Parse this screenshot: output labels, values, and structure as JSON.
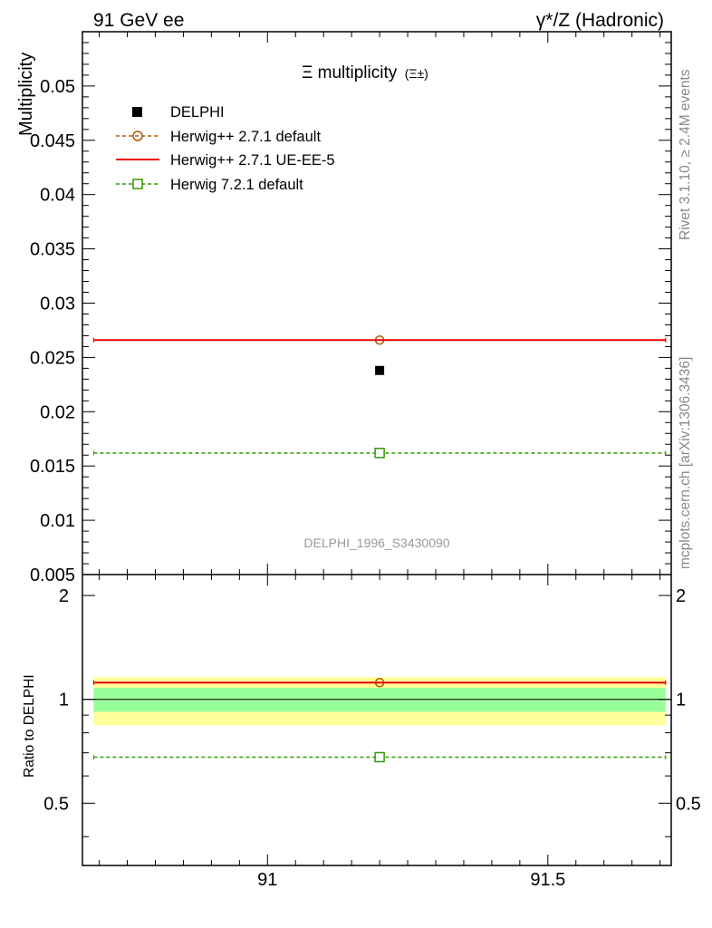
{
  "header": {
    "left": "91 GeV ee",
    "right": "γ*/Z (Hadronic)"
  },
  "side_labels": {
    "rivet": "Rivet 3.1.10, ≥ 2.4M events",
    "mcplots": "mcplots.cern.ch [arXiv:1306.3436]"
  },
  "chart_data": {
    "type": "scatter",
    "title": "Ξ multiplicity",
    "title_suffix": "(Ξ±)",
    "ylabel": "Multiplicity",
    "ratio_ylabel": "Ratio to DELPHI",
    "watermark": "DELPHI_1996_S3430090",
    "xlim": [
      90.67,
      91.72
    ],
    "ylim": [
      0.005,
      0.055
    ],
    "ratio_ylim": [
      0.33,
      2.3
    ],
    "x_ticks": [
      "91",
      "91.5"
    ],
    "y_ticks": [
      "0.005",
      "0.01",
      "0.015",
      "0.02",
      "0.025",
      "0.03",
      "0.035",
      "0.04",
      "0.045",
      "0.05"
    ],
    "ratio_ticks": [
      "0.5",
      "1",
      "2"
    ],
    "x_range": [
      90.69,
      91.71
    ],
    "x_center": 91.2,
    "data": {
      "name": "DELPHI",
      "x": 91.2,
      "y": 0.0238,
      "band_inner": [
        0.92,
        1.08
      ],
      "band_outer": [
        0.84,
        1.16
      ]
    },
    "series": [
      {
        "name": "Herwig++ 2.7.1 default",
        "y": 0.0266,
        "ratio": 1.118,
        "color": "#b35900",
        "style": "dashed",
        "marker": "circle"
      },
      {
        "name": "Herwig++ 2.7.1 UE-EE-5",
        "y": 0.0266,
        "ratio": 1.118,
        "color": "#ee0000",
        "style": "solid",
        "marker": "none"
      },
      {
        "name": "Herwig 7.2.1 default",
        "y": 0.0162,
        "ratio": 0.68,
        "color": "#339900",
        "style": "dashed",
        "marker": "square"
      }
    ],
    "colors": {
      "band_inner": "#99ff99",
      "band_outer": "#ffff99"
    }
  }
}
